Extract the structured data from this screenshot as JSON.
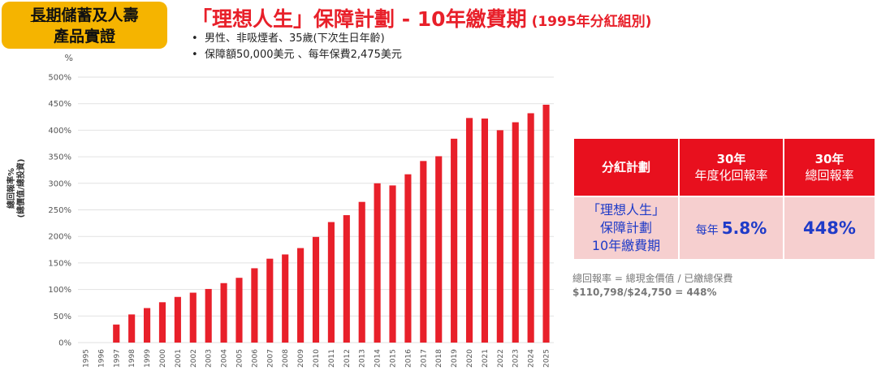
{
  "badge": {
    "line1_a": "長期",
    "line1_b": "儲蓄及人壽",
    "line2": "產品實證"
  },
  "title": {
    "main": "「理想人生」保障計劃 - 10年繳費期",
    "sub": "(1995年分紅組別)"
  },
  "bullets": [
    "男性、非吸煙者、35歲(下次生日年齡)",
    "保障額50,000美元 、每年保費2,475美元"
  ],
  "bullet_symbol": "•",
  "colors": {
    "bar": "#E8202A",
    "badge": "#F5B400",
    "accent_red": "#E8101E",
    "plan_blue": "#1F3BC8",
    "cell_pink": "#F6CFCF"
  },
  "chart_data": {
    "type": "bar",
    "ylabel_line1": "總回報率%",
    "ylabel_line2": "(總價值/總投資)",
    "y_unit": "%",
    "ylim": [
      0,
      500
    ],
    "yticks": [
      "0%",
      "50%",
      "100%",
      "150%",
      "200%",
      "250%",
      "300%",
      "350%",
      "400%",
      "450%",
      "500%"
    ],
    "categories": [
      "1995",
      "1996",
      "1997",
      "1998",
      "1999",
      "2000",
      "2001",
      "2002",
      "2003",
      "2004",
      "2005",
      "2006",
      "2007",
      "2008",
      "2009",
      "2010",
      "2011",
      "2012",
      "2013",
      "2014",
      "2015",
      "2016",
      "2017",
      "2018",
      "2019",
      "2020",
      "2021",
      "2022",
      "2023",
      "2024",
      "2025"
    ],
    "values": [
      0,
      0,
      34,
      53,
      65,
      76,
      86,
      94,
      101,
      112,
      122,
      140,
      158,
      166,
      178,
      199,
      227,
      240,
      265,
      300,
      296,
      317,
      342,
      351,
      384,
      423,
      422,
      400,
      415,
      432,
      448
    ],
    "grid": true
  },
  "table": {
    "headers": [
      {
        "line1": "分紅計劃",
        "line2": ""
      },
      {
        "line1": "30年",
        "line2": "年度化回報率"
      },
      {
        "line1": "30年",
        "line2": "總回報率"
      }
    ],
    "plan_lines": [
      "「理想人生」",
      "保障計劃",
      "10年繳費期"
    ],
    "annual_prefix": "每年",
    "annual_value": "5.8%",
    "total_value": "448%"
  },
  "formula": {
    "line1": "總回報率 = 總現金價值 / 已繳總保費",
    "line2": "$110,798/$24,750 = 448%"
  }
}
